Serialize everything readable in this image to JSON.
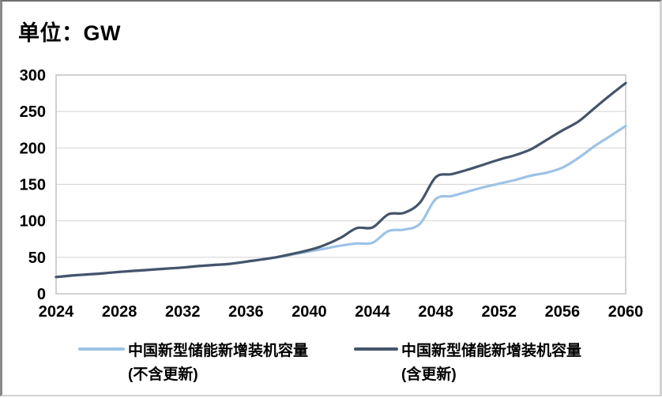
{
  "title": "单位：GW",
  "colors": {
    "series_excluding_renewal": "#9DC3E6",
    "series_including_renewal": "#44546A",
    "gridline": "#D9D9D9",
    "plot_border": "#BFBFBF",
    "text": "#000000",
    "background": "#FFFFFF"
  },
  "y_axis": {
    "ticks": [
      0,
      50,
      100,
      150,
      200,
      250,
      300
    ]
  },
  "x_axis": {
    "ticks": [
      2024,
      2028,
      2032,
      2036,
      2040,
      2044,
      2048,
      2052,
      2056,
      2060
    ]
  },
  "legend": {
    "items": [
      {
        "line1": "中国新型储能新增装机容量",
        "line2": "(不含更新)",
        "color": "#9DC3E6"
      },
      {
        "line1": "中国新型储能新增装机容量",
        "line2": "(含更新)",
        "color": "#44546A"
      }
    ]
  },
  "chart_data": {
    "type": "line",
    "title": "单位：GW",
    "xlabel": "",
    "ylabel": "GW",
    "ylim": [
      0,
      300
    ],
    "ytick_step": 50,
    "xlim": [
      2024,
      2060
    ],
    "grid": "horizontal",
    "legend_position": "bottom",
    "smooth": true,
    "x": [
      2024,
      2025,
      2026,
      2027,
      2028,
      2029,
      2030,
      2031,
      2032,
      2033,
      2034,
      2035,
      2036,
      2037,
      2038,
      2039,
      2040,
      2041,
      2042,
      2043,
      2044,
      2045,
      2046,
      2047,
      2048,
      2049,
      2050,
      2051,
      2052,
      2053,
      2054,
      2055,
      2056,
      2057,
      2058,
      2059,
      2060
    ],
    "series": [
      {
        "name": "中国新型储能新增装机容量(不含更新)",
        "color": "#9DC3E6",
        "values": [
          23,
          25,
          26.5,
          28,
          30,
          31.5,
          33,
          34.5,
          36,
          38,
          39.5,
          41,
          44,
          47,
          50,
          54,
          58,
          62,
          66,
          69,
          70,
          86,
          88,
          96,
          130,
          134,
          140,
          146,
          151,
          156,
          162,
          166,
          173,
          186,
          202,
          216,
          230
        ]
      },
      {
        "name": "中国新型储能新增装机容量(含更新)",
        "color": "#44546A",
        "values": [
          23,
          25,
          26.5,
          28,
          30,
          31.5,
          33,
          34.5,
          36,
          38,
          39.5,
          41,
          44,
          47,
          50.5,
          55,
          60,
          67,
          77,
          90,
          91,
          109,
          111,
          125,
          160,
          164,
          170,
          177,
          184,
          190,
          198,
          211,
          224,
          236,
          254,
          272,
          289
        ]
      }
    ]
  }
}
